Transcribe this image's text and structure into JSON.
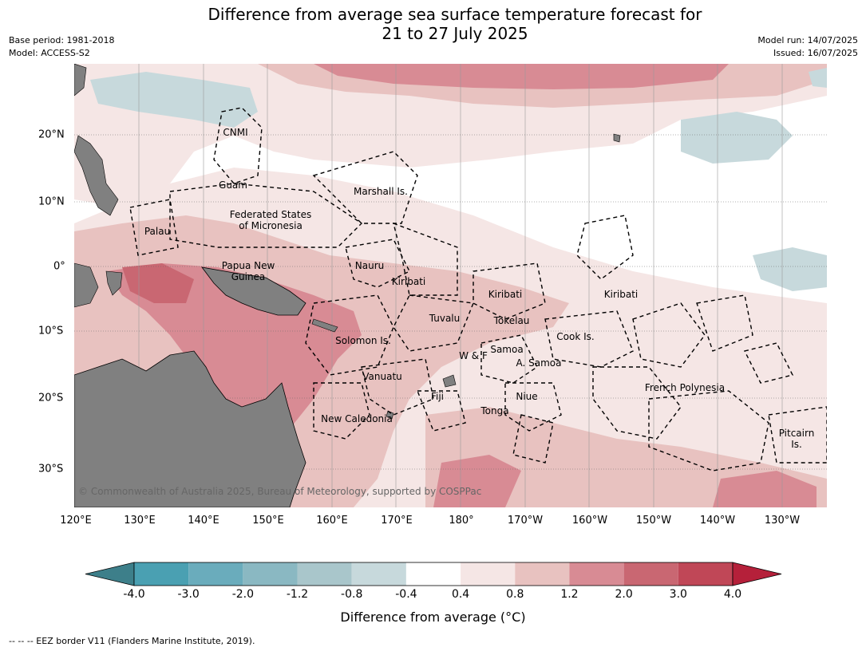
{
  "title": {
    "line1": "Difference from average sea surface temperature forecast for",
    "line2": "21 to 27 July 2025"
  },
  "meta": {
    "base_period": "Base period: 1981-2018",
    "model": "Model: ACCESS-S2",
    "model_run": "Model run: 14/07/2025",
    "issued": "Issued: 16/07/2025"
  },
  "map": {
    "lon_ticks": [
      "120°E",
      "130°E",
      "140°E",
      "150°E",
      "160°E",
      "170°E",
      "180°",
      "170°W",
      "160°W",
      "150°W",
      "140°W",
      "130°W"
    ],
    "lat_ticks": [
      "20°N",
      "10°N",
      "0°",
      "10°S",
      "20°S",
      "30°S"
    ],
    "colors": {
      "land": "#808080",
      "neg_weak": "#c7d9dc",
      "pos_weak": "#f5e6e5",
      "pos_mid": "#e8c2c0",
      "pos_strong": "#d88b94",
      "pos_high": "#c96772"
    },
    "places": {
      "cnmi": "CNMI",
      "guam": "Guam",
      "marshall": "Marshall Is.",
      "fsm_line1": "Federated States",
      "fsm_line2": "of Micronesia",
      "palau": "Palau",
      "png_line1": "Papua New",
      "png_line2": "Guinea",
      "nauru": "Nauru",
      "kiribati_w": "Kiribati",
      "kiribati_c": "Kiribati",
      "kiribati_e": "Kiribati",
      "tuvalu": "Tuvalu",
      "tokelau": "Tokelau",
      "cook": "Cook Is.",
      "solomon": "Solomon Is.",
      "samoa": "Samoa",
      "wf": "W & F",
      "asamoa": "A. Samoa",
      "vanuatu": "Vanuatu",
      "fiji": "Fiji",
      "niue": "Niue",
      "tonga": "Tonga",
      "newcal": "New Caledonia",
      "frpoly": "French Polynesia",
      "pitcairn_line1": "Pitcairn",
      "pitcairn_line2": "Is."
    },
    "copyright": "© Commonwealth of Australia 2025, Bureau of Meteorology, supported by COSPPac"
  },
  "colorbar": {
    "labels": [
      "-4.0",
      "-3.0",
      "-2.0",
      "-1.2",
      "-0.8",
      "-0.4",
      "0.4",
      "0.8",
      "1.2",
      "2.0",
      "3.0",
      "4.0"
    ],
    "colors": [
      "#3d7f8a",
      "#4aa0b2",
      "#6aacbc",
      "#8ab8c2",
      "#a9c6cb",
      "#c7d9dc",
      "#ffffff",
      "#f5e6e5",
      "#e8c2c0",
      "#d88b94",
      "#c96772",
      "#c04757",
      "#b5203a"
    ],
    "title": "Difference from average (°C)"
  },
  "legend": "--  --  -- EEZ border V11 (Flanders Marine Institute, 2019)."
}
